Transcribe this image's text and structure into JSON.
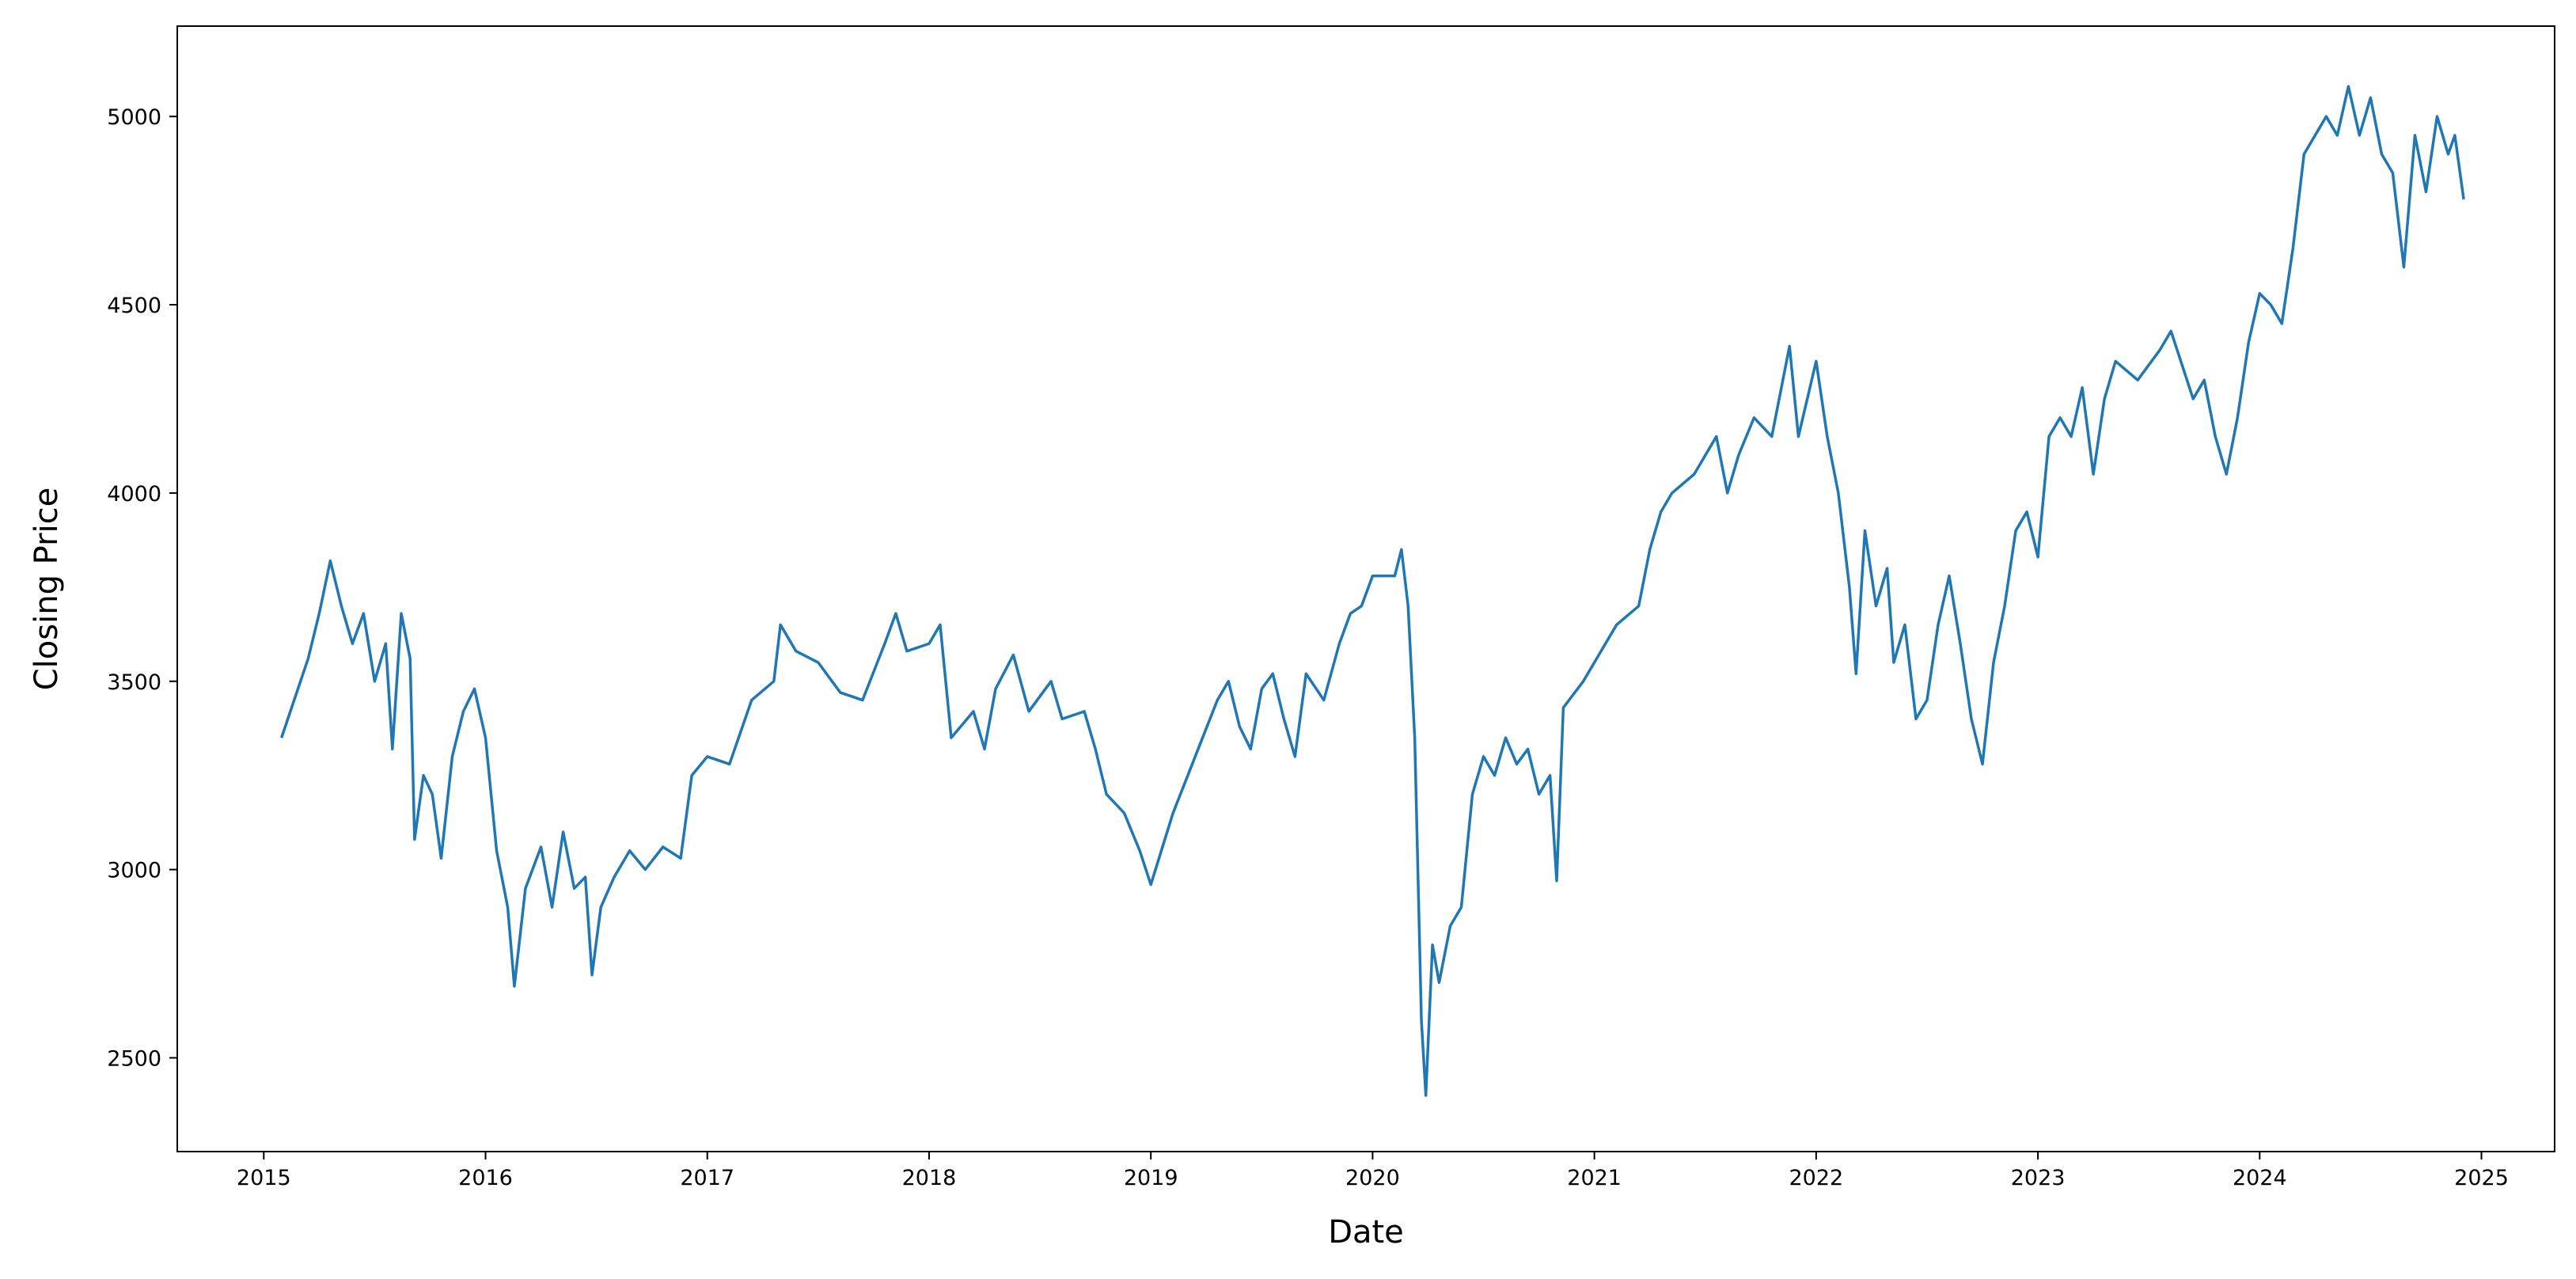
{
  "chart_data": {
    "type": "line",
    "x_label": "Date",
    "y_label": "Closing Price",
    "color": "#1f77b4",
    "xlim": [
      2014.61,
      2025.33
    ],
    "ylim": [
      2251,
      5240
    ],
    "xticks": [
      2015,
      2016,
      2017,
      2018,
      2019,
      2020,
      2021,
      2022,
      2023,
      2024,
      2025
    ],
    "yticks": [
      2500,
      3000,
      3500,
      4000,
      4500,
      5000
    ],
    "x": [
      2015.08,
      2015.12,
      2015.2,
      2015.25,
      2015.3,
      2015.35,
      2015.4,
      2015.45,
      2015.5,
      2015.55,
      2015.58,
      2015.62,
      2015.66,
      2015.68,
      2015.72,
      2015.76,
      2015.8,
      2015.85,
      2015.9,
      2015.95,
      2016.0,
      2016.05,
      2016.1,
      2016.13,
      2016.18,
      2016.25,
      2016.3,
      2016.35,
      2016.4,
      2016.45,
      2016.48,
      2016.52,
      2016.58,
      2016.65,
      2016.72,
      2016.8,
      2016.88,
      2016.93,
      2017.0,
      2017.1,
      2017.2,
      2017.3,
      2017.33,
      2017.4,
      2017.5,
      2017.6,
      2017.7,
      2017.8,
      2017.85,
      2017.9,
      2018.0,
      2018.05,
      2018.1,
      2018.2,
      2018.25,
      2018.3,
      2018.38,
      2018.45,
      2018.55,
      2018.6,
      2018.7,
      2018.75,
      2018.8,
      2018.88,
      2018.95,
      2019.0,
      2019.1,
      2019.2,
      2019.3,
      2019.35,
      2019.4,
      2019.45,
      2019.5,
      2019.55,
      2019.6,
      2019.65,
      2019.7,
      2019.78,
      2019.85,
      2019.9,
      2019.95,
      2020.0,
      2020.1,
      2020.13,
      2020.16,
      2020.19,
      2020.22,
      2020.24,
      2020.27,
      2020.3,
      2020.35,
      2020.4,
      2020.45,
      2020.5,
      2020.55,
      2020.6,
      2020.65,
      2020.7,
      2020.75,
      2020.8,
      2020.83,
      2020.86,
      2020.95,
      2021.0,
      2021.1,
      2021.2,
      2021.25,
      2021.3,
      2021.35,
      2021.45,
      2021.55,
      2021.6,
      2021.65,
      2021.72,
      2021.8,
      2021.85,
      2021.88,
      2021.92,
      2022.0,
      2022.05,
      2022.1,
      2022.15,
      2022.18,
      2022.22,
      2022.27,
      2022.32,
      2022.35,
      2022.4,
      2022.45,
      2022.5,
      2022.55,
      2022.6,
      2022.65,
      2022.7,
      2022.75,
      2022.8,
      2022.85,
      2022.9,
      2022.95,
      2023.0,
      2023.05,
      2023.1,
      2023.15,
      2023.2,
      2023.25,
      2023.3,
      2023.35,
      2023.45,
      2023.55,
      2023.6,
      2023.7,
      2023.75,
      2023.8,
      2023.85,
      2023.9,
      2023.95,
      2024.0,
      2024.05,
      2024.1,
      2024.15,
      2024.2,
      2024.3,
      2024.35,
      2024.4,
      2024.45,
      2024.5,
      2024.55,
      2024.6,
      2024.65,
      2024.7,
      2024.75,
      2024.8,
      2024.85,
      2024.88,
      2024.92
    ],
    "values": [
      3350,
      3420,
      3560,
      3680,
      3820,
      3700,
      3600,
      3680,
      3500,
      3600,
      3320,
      3680,
      3560,
      3080,
      3250,
      3200,
      3030,
      3300,
      3420,
      3480,
      3350,
      3050,
      2900,
      2690,
      2950,
      3060,
      2900,
      3100,
      2950,
      2980,
      2720,
      2900,
      2980,
      3050,
      3000,
      3060,
      3030,
      3250,
      3300,
      3280,
      3450,
      3500,
      3650,
      3580,
      3550,
      3470,
      3450,
      3600,
      3680,
      3580,
      3600,
      3650,
      3350,
      3420,
      3320,
      3480,
      3570,
      3420,
      3500,
      3400,
      3420,
      3320,
      3200,
      3150,
      3050,
      2960,
      3150,
      3300,
      3450,
      3500,
      3380,
      3320,
      3480,
      3520,
      3400,
      3300,
      3520,
      3450,
      3600,
      3680,
      3700,
      3780,
      3780,
      3850,
      3700,
      3350,
      2600,
      2400,
      2800,
      2700,
      2850,
      2900,
      3200,
      3300,
      3250,
      3350,
      3280,
      3320,
      3200,
      3250,
      2970,
      3430,
      3500,
      3550,
      3650,
      3700,
      3850,
      3950,
      4000,
      4050,
      4150,
      4000,
      4100,
      4200,
      4150,
      4300,
      4390,
      4150,
      4350,
      4150,
      4000,
      3750,
      3520,
      3900,
      3700,
      3800,
      3550,
      3650,
      3400,
      3450,
      3650,
      3780,
      3600,
      3400,
      3280,
      3550,
      3700,
      3900,
      3950,
      3830,
      4150,
      4200,
      4150,
      4280,
      4050,
      4250,
      4350,
      4300,
      4380,
      4430,
      4250,
      4300,
      4150,
      4050,
      4200,
      4400,
      4530,
      4500,
      4450,
      4650,
      4900,
      5000,
      4950,
      5080,
      4950,
      5050,
      4900,
      4850,
      4600,
      4950,
      4800,
      5000,
      4900,
      4950,
      4780
    ]
  }
}
